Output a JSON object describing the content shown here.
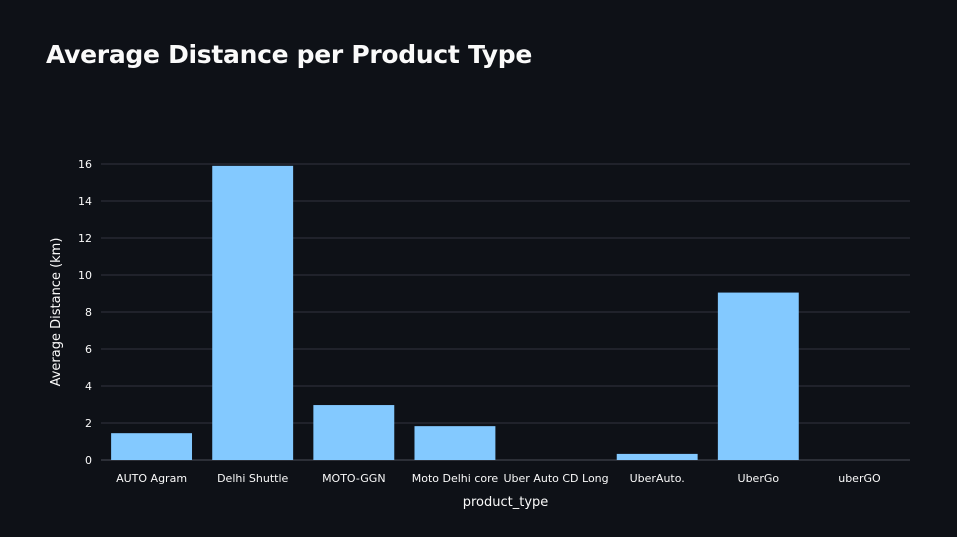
{
  "chart_data": {
    "type": "bar",
    "title": "Average Distance per Product Type",
    "xlabel": "product_type",
    "ylabel": "Average Distance (km)",
    "categories": [
      "AUTO Agram",
      "Delhi Shuttle",
      "MOTO-GGN",
      "Moto Delhi core",
      "Uber Auto CD Long",
      "UberAuto.",
      "UberGo",
      "uberGO"
    ],
    "values": [
      1.45,
      15.9,
      2.97,
      1.83,
      0,
      0.33,
      9.05,
      0
    ],
    "ylim": [
      0,
      16
    ],
    "yticks": [
      0,
      2,
      4,
      6,
      8,
      10,
      12,
      14,
      16
    ],
    "grid": true,
    "legend": "none",
    "bar_color": "#83c9ff",
    "background_color": "#0e1117",
    "text_color": "#fafafa",
    "grid_color": "#31333f"
  }
}
